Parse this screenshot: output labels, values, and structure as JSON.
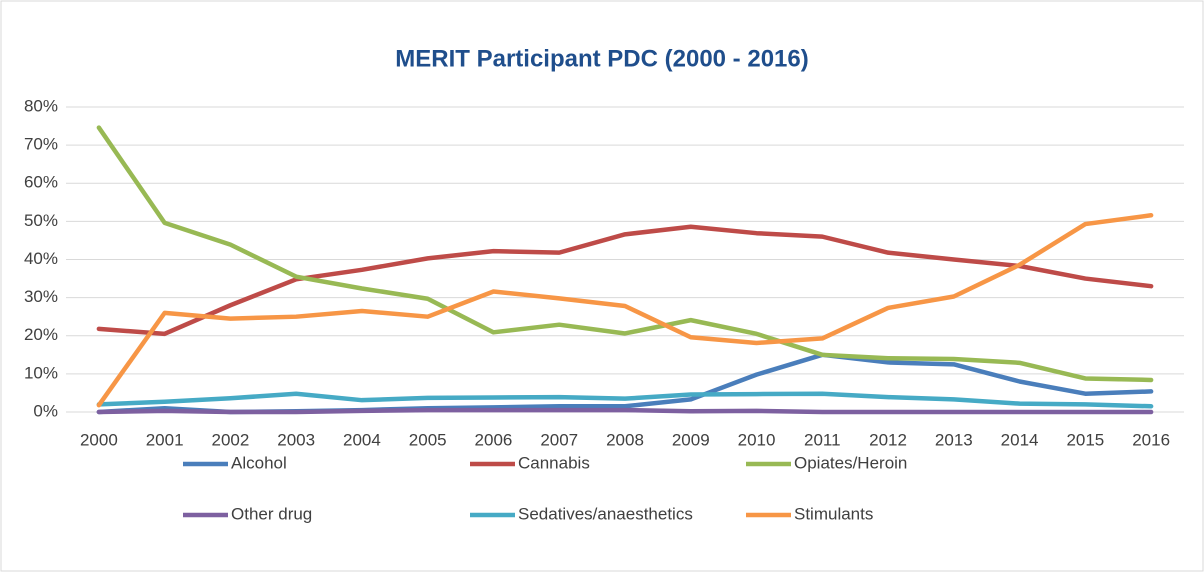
{
  "chart_data": {
    "type": "line",
    "title": "MERIT Participant PDC (2000 - 2016)",
    "categories": [
      "2000",
      "2001",
      "2002",
      "2003",
      "2004",
      "2005",
      "2006",
      "2007",
      "2008",
      "2009",
      "2010",
      "2011",
      "2012",
      "2013",
      "2014",
      "2015",
      "2016"
    ],
    "series": [
      {
        "name": "Alcohol",
        "color": "#4a7ebb",
        "values": [
          0,
          1,
          0,
          0.2,
          0.5,
          1,
          1.2,
          1.5,
          1.5,
          3.3,
          9.8,
          15,
          13,
          12.5,
          8,
          4.8,
          5.4
        ]
      },
      {
        "name": "Cannabis",
        "color": "#be4b48",
        "values": [
          21.8,
          20.5,
          28,
          34.8,
          37.3,
          40.3,
          42.2,
          41.8,
          46.6,
          48.6,
          46.9,
          46,
          41.8,
          40,
          38.3,
          35,
          33
        ]
      },
      {
        "name": "Opiates/Heroin",
        "color": "#98b954",
        "values": [
          74.6,
          49.6,
          43.9,
          35.5,
          32.4,
          29.7,
          20.9,
          22.9,
          20.6,
          24.1,
          20.5,
          15,
          14.1,
          13.9,
          12.9,
          8.8,
          8.4
        ]
      },
      {
        "name": "Other drug",
        "color": "#7d60a0",
        "values": [
          0,
          0.3,
          0,
          0,
          0.3,
          0.5,
          0.5,
          0.5,
          0.5,
          0.2,
          0.3,
          0,
          0,
          0,
          0,
          0,
          0
        ]
      },
      {
        "name": "Sedatives/anaesthetics",
        "color": "#46aac5",
        "values": [
          2,
          2.7,
          3.6,
          4.8,
          3.1,
          3.7,
          3.8,
          3.9,
          3.5,
          4.6,
          4.7,
          4.8,
          3.9,
          3.3,
          2.2,
          2,
          1.5
        ]
      },
      {
        "name": "Stimulants",
        "color": "#f79646",
        "values": [
          1.8,
          26,
          24.5,
          25,
          26.5,
          25,
          31.6,
          29.8,
          27.8,
          19.6,
          18.1,
          19.3,
          27.3,
          30.3,
          38.6,
          49.3,
          51.6
        ]
      }
    ],
    "ylim": [
      0,
      80
    ],
    "yticks": [
      {
        "value": 0,
        "label": "0%"
      },
      {
        "value": 10,
        "label": "10%"
      },
      {
        "value": 20,
        "label": "20%"
      },
      {
        "value": 30,
        "label": "30%"
      },
      {
        "value": 40,
        "label": "40%"
      },
      {
        "value": 50,
        "label": "50%"
      },
      {
        "value": 60,
        "label": "60%"
      },
      {
        "value": 70,
        "label": "70%"
      },
      {
        "value": 80,
        "label": "80%"
      }
    ],
    "grid": true,
    "legend": "bottom"
  }
}
